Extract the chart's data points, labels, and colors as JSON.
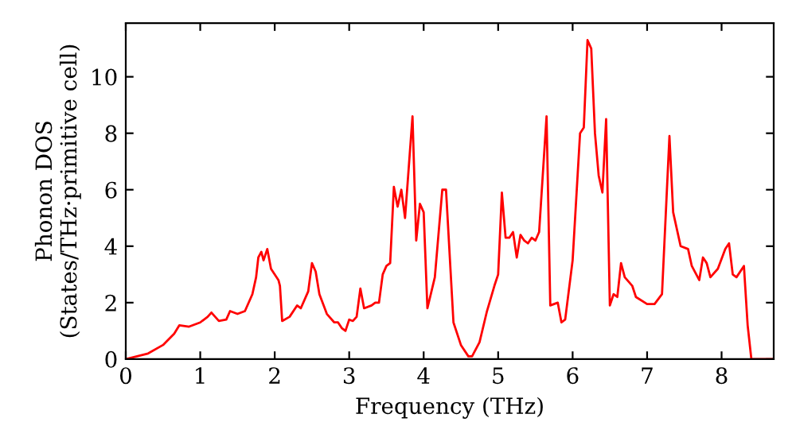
{
  "chart_data": {
    "type": "line",
    "xlabel": "Frequency (THz)",
    "ylabel": "Phonon DOS\n(States/THz·primitive cell)",
    "xlim": [
      0,
      8.7
    ],
    "ylim": [
      0,
      11.9
    ],
    "xticks": [
      0,
      1,
      2,
      3,
      4,
      5,
      6,
      7,
      8
    ],
    "yticks": [
      0,
      2,
      4,
      6,
      8,
      10
    ],
    "grid": false,
    "legend": false,
    "series": [
      {
        "color": "#ff0000",
        "x": [
          0,
          0.3,
          0.5,
          0.65,
          0.72,
          0.85,
          1.0,
          1.1,
          1.15,
          1.25,
          1.35,
          1.4,
          1.5,
          1.6,
          1.7,
          1.75,
          1.78,
          1.82,
          1.85,
          1.9,
          1.95,
          2.05,
          2.07,
          2.1,
          2.2,
          2.3,
          2.35,
          2.45,
          2.5,
          2.55,
          2.6,
          2.7,
          2.8,
          2.85,
          2.9,
          2.95,
          3.0,
          3.05,
          3.1,
          3.15,
          3.2,
          3.3,
          3.35,
          3.4,
          3.45,
          3.5,
          3.55,
          3.6,
          3.65,
          3.7,
          3.75,
          3.85,
          3.9,
          3.95,
          4.0,
          4.05,
          4.15,
          4.25,
          4.3,
          4.4,
          4.5,
          4.6,
          4.65,
          4.75,
          4.85,
          4.95,
          5.0,
          5.05,
          5.1,
          5.15,
          5.2,
          5.25,
          5.3,
          5.35,
          5.4,
          5.45,
          5.5,
          5.55,
          5.65,
          5.7,
          5.8,
          5.85,
          5.9,
          6.0,
          6.1,
          6.15,
          6.2,
          6.25,
          6.3,
          6.35,
          6.4,
          6.45,
          6.5,
          6.55,
          6.6,
          6.65,
          6.7,
          6.8,
          6.85,
          7.0,
          7.1,
          7.2,
          7.3,
          7.35,
          7.45,
          7.55,
          7.6,
          7.7,
          7.75,
          7.8,
          7.85,
          7.95,
          8.05,
          8.1,
          8.15,
          8.2,
          8.3,
          8.35,
          8.4,
          8.7
        ],
        "values": [
          0,
          0.2,
          0.5,
          0.9,
          1.2,
          1.15,
          1.3,
          1.5,
          1.65,
          1.35,
          1.4,
          1.7,
          1.6,
          1.7,
          2.3,
          2.9,
          3.6,
          3.8,
          3.5,
          3.9,
          3.2,
          2.8,
          2.6,
          1.35,
          1.5,
          1.9,
          1.8,
          2.4,
          3.4,
          3.1,
          2.3,
          1.6,
          1.3,
          1.3,
          1.1,
          1.0,
          1.4,
          1.35,
          1.5,
          2.5,
          1.8,
          1.9,
          2.0,
          2.0,
          3.0,
          3.3,
          3.4,
          6.1,
          5.4,
          6.0,
          5.0,
          8.6,
          4.2,
          5.5,
          5.2,
          1.8,
          2.9,
          6.0,
          6.0,
          1.3,
          0.5,
          0.1,
          0.1,
          0.6,
          1.7,
          2.6,
          3.0,
          5.9,
          4.3,
          4.3,
          4.5,
          3.6,
          4.4,
          4.2,
          4.1,
          4.3,
          4.2,
          4.5,
          8.6,
          1.9,
          2.0,
          1.3,
          1.4,
          3.5,
          8.0,
          8.2,
          11.3,
          11.0,
          8.0,
          6.5,
          5.9,
          8.5,
          1.9,
          2.3,
          2.2,
          3.4,
          2.9,
          2.6,
          2.2,
          1.95,
          1.95,
          2.3,
          7.9,
          5.2,
          4.0,
          3.9,
          3.3,
          2.8,
          3.6,
          3.4,
          2.9,
          3.2,
          3.9,
          4.1,
          3.0,
          2.9,
          3.3,
          1.2,
          0,
          0
        ]
      }
    ]
  }
}
